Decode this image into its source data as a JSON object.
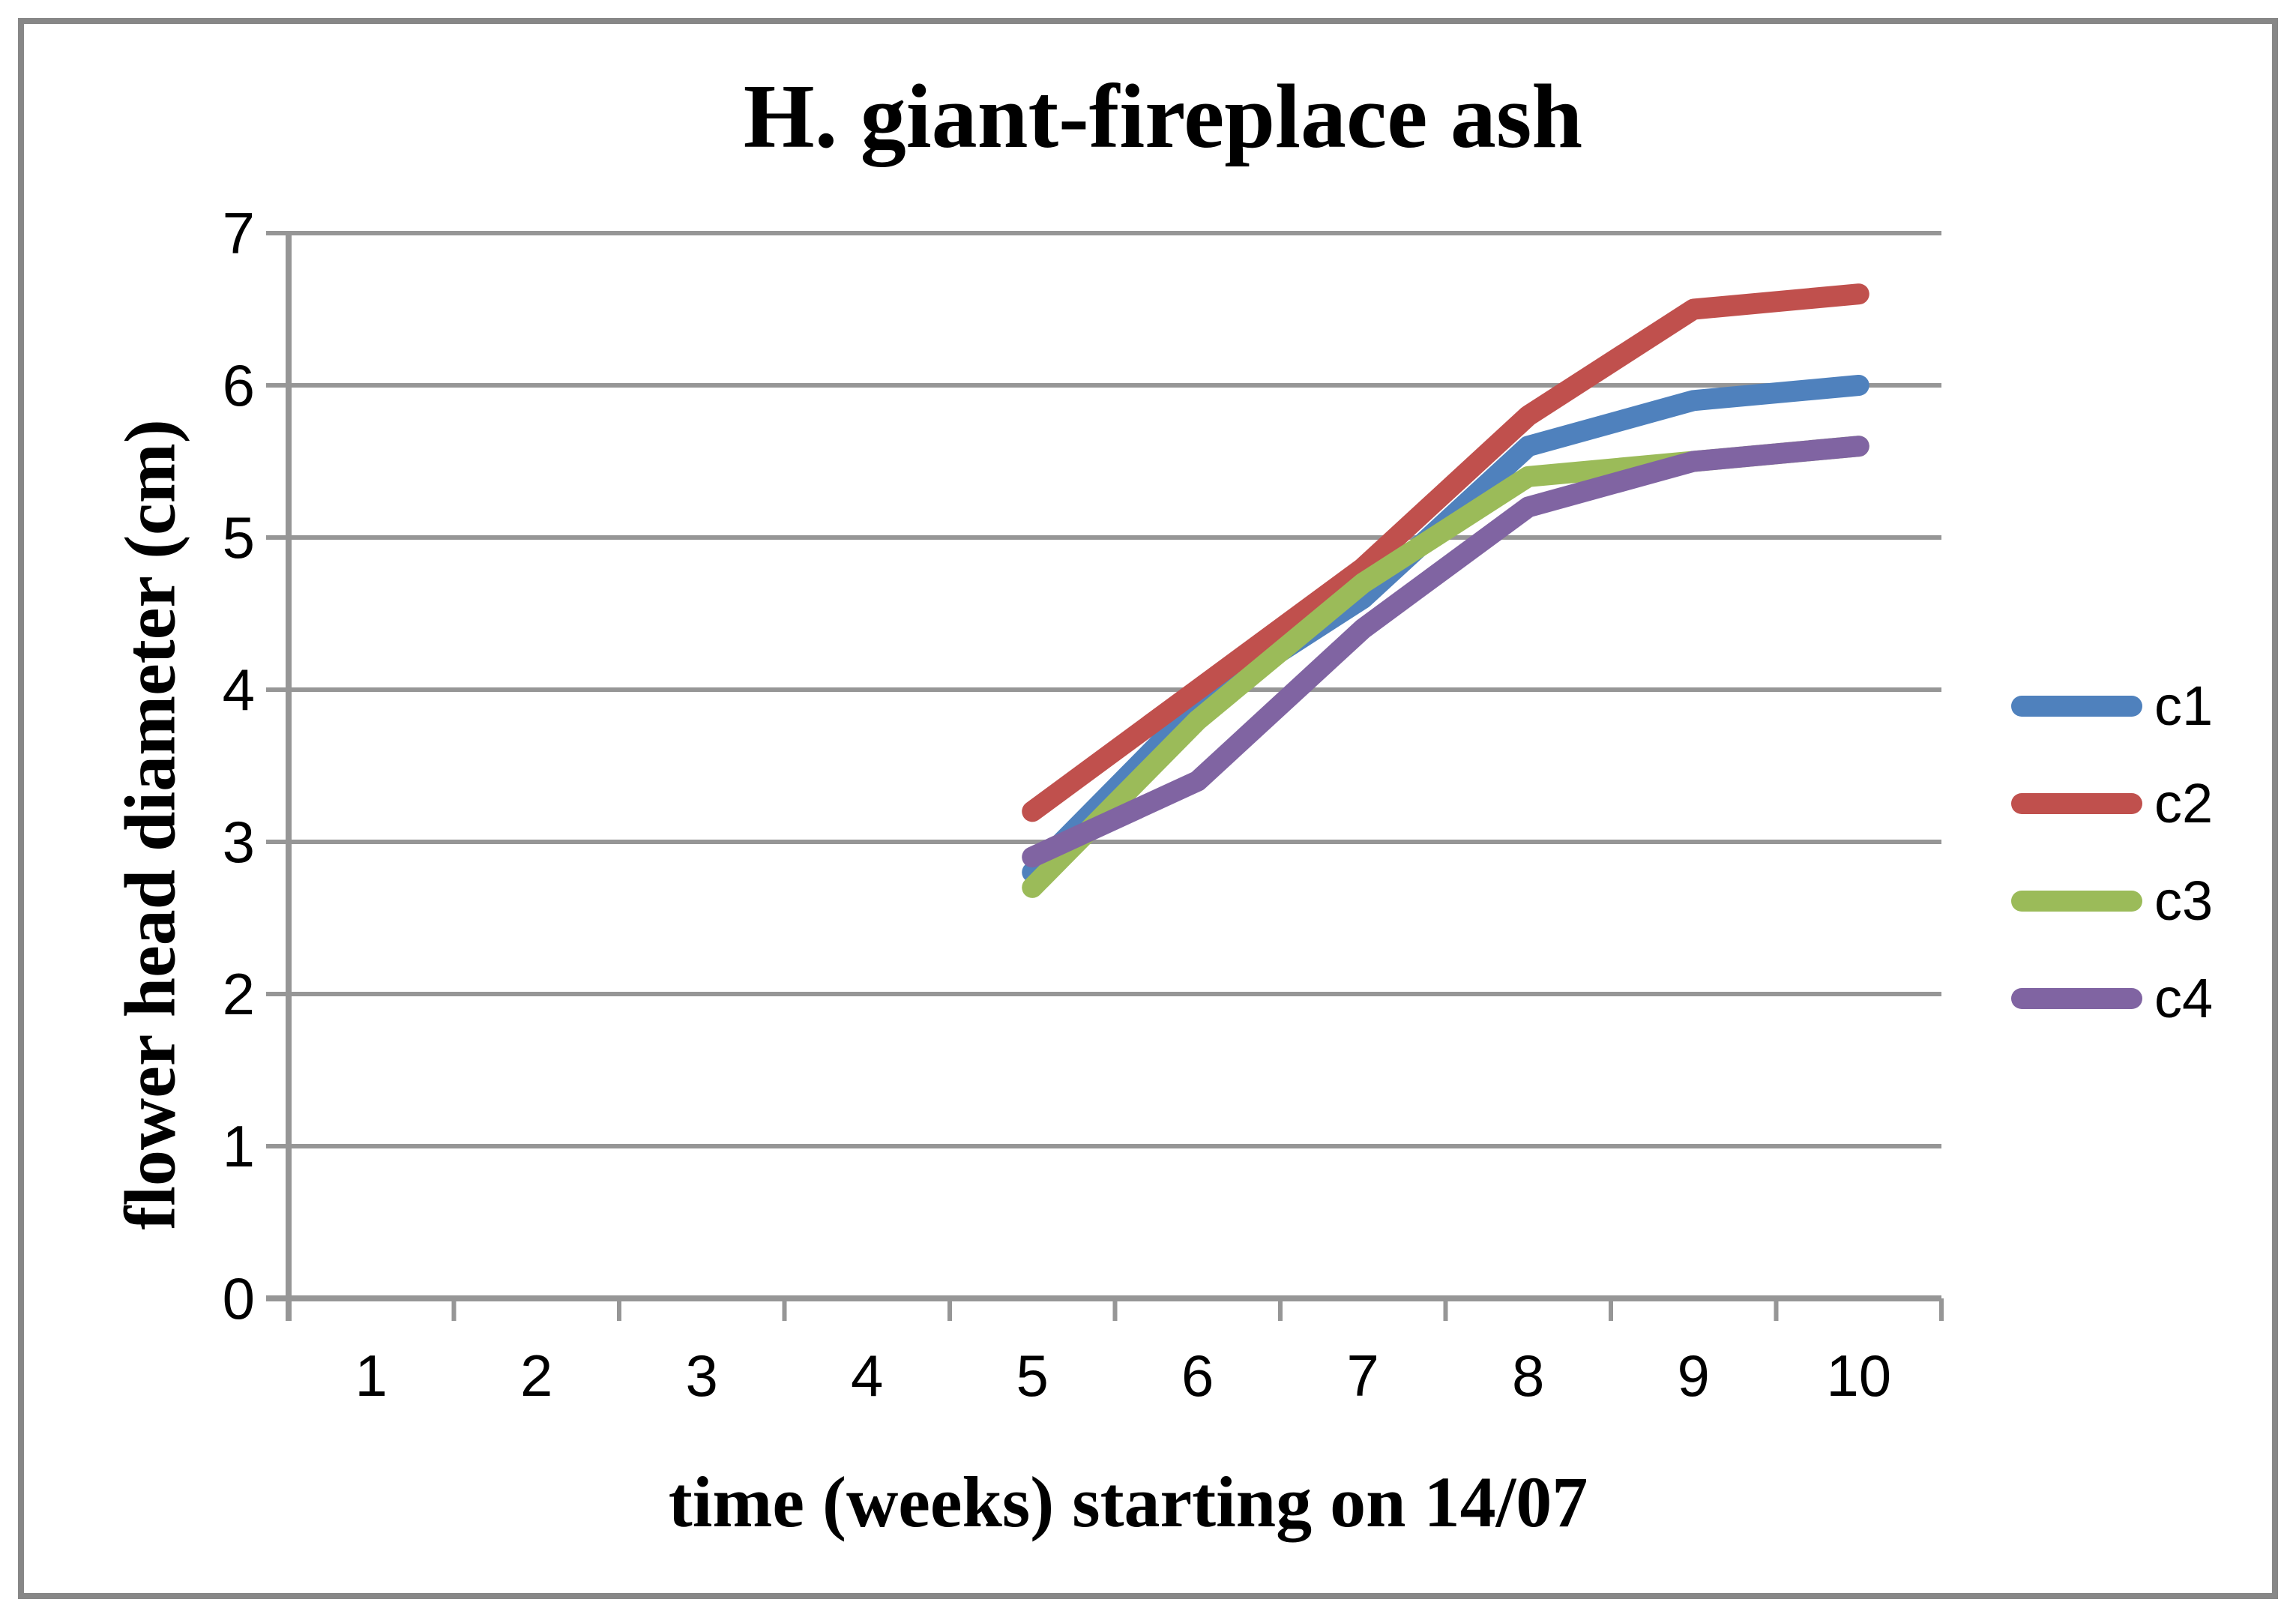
{
  "title": "H. giant-fireplace ash",
  "colors": {
    "c1": "#4F81BD",
    "c2": "#C0504D",
    "c3": "#9BBB59",
    "c4": "#8064A2",
    "gridline": "#969696",
    "axis": "#969696",
    "frame_border": "#878787",
    "text": "#000000"
  },
  "legend": {
    "position": "right",
    "labels": [
      "c1",
      "c2",
      "c3",
      "c4"
    ]
  },
  "chart_data": {
    "type": "line",
    "title": "H. giant-fireplace ash",
    "xlabel": "time (weeks) starting on 14/07",
    "ylabel": "flower head diameter (cm)",
    "categories": [
      1,
      2,
      3,
      4,
      5,
      6,
      7,
      8,
      9,
      10
    ],
    "xticks": [
      "1",
      "2",
      "3",
      "4",
      "5",
      "6",
      "7",
      "8",
      "9",
      "10"
    ],
    "yticks": [
      "0",
      "1",
      "2",
      "3",
      "4",
      "5",
      "6",
      "7"
    ],
    "ylim": [
      0,
      7
    ],
    "xlim_categories": [
      1,
      10
    ],
    "grid": true,
    "gridlines": "horizontal-major-every-1",
    "legend_position": "right",
    "series": [
      {
        "name": "c1",
        "color": "#4F81BD",
        "x": [
          5,
          6,
          7,
          8,
          9,
          10
        ],
        "y": [
          2.8,
          3.9,
          4.6,
          5.6,
          5.9,
          6.0
        ]
      },
      {
        "name": "c2",
        "color": "#C0504D",
        "x": [
          5,
          6,
          7,
          8,
          9,
          10
        ],
        "y": [
          3.2,
          4.0,
          4.8,
          5.8,
          6.5,
          6.6
        ]
      },
      {
        "name": "c3",
        "color": "#9BBB59",
        "x": [
          5,
          6,
          7,
          8,
          9,
          10
        ],
        "y": [
          2.7,
          3.8,
          4.7,
          5.4,
          5.5,
          5.6
        ]
      },
      {
        "name": "c4",
        "color": "#8064A2",
        "x": [
          5,
          6,
          7,
          8,
          9,
          10
        ],
        "y": [
          2.9,
          3.4,
          4.4,
          5.2,
          5.5,
          5.6
        ]
      }
    ]
  }
}
